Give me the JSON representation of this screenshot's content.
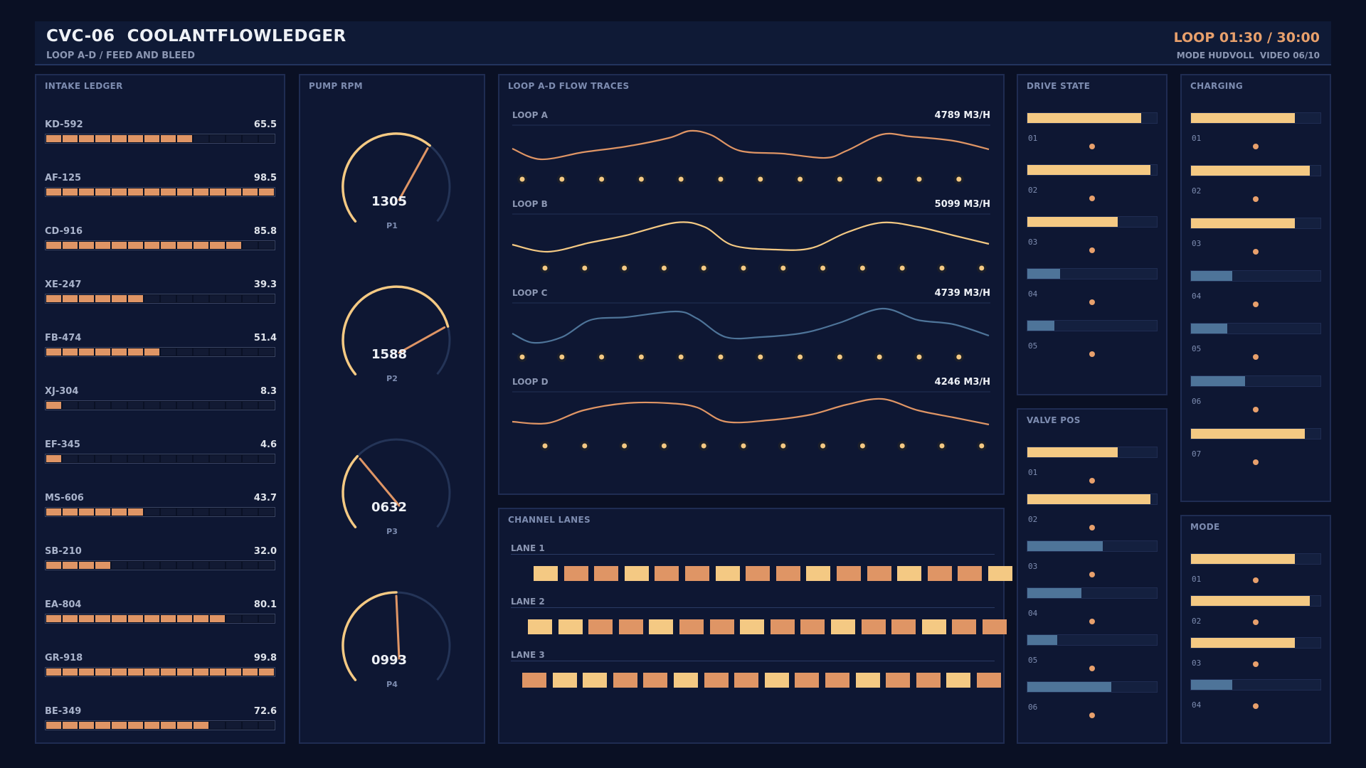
{
  "header": {
    "title": "CVC-06  COOLANTFLOWLEDGER",
    "subtitle": "LOOP A-D / FEED AND BLEED",
    "timer": "LOOP 01:30 / 30:00",
    "mode_info": "MODE HUDVOLL  VIDEO 06/10"
  },
  "colors": {
    "bg": "#0a1024",
    "panel": "#0e1733",
    "accent_orange": "#df9565",
    "accent_yellow": "#f4c983",
    "accent_blue": "#4e7499"
  },
  "intake": {
    "title": "INTAKE LEDGER",
    "rows": [
      {
        "label": "KD-592",
        "value": "65.5",
        "level": 65.5
      },
      {
        "label": "AF-125",
        "value": "98.5",
        "level": 98.5
      },
      {
        "label": "CD-916",
        "value": "85.8",
        "level": 85.8
      },
      {
        "label": "XE-247",
        "value": "39.3",
        "level": 39.3
      },
      {
        "label": "FB-474",
        "value": "51.4",
        "level": 51.4
      },
      {
        "label": "XJ-304",
        "value": "8.3",
        "level": 8.3
      },
      {
        "label": "EF-345",
        "value": "4.6",
        "level": 4.6
      },
      {
        "label": "MS-606",
        "value": "43.7",
        "level": 43.7
      },
      {
        "label": "SB-210",
        "value": "32.0",
        "level": 32.0
      },
      {
        "label": "EA-804",
        "value": "80.1",
        "level": 80.1
      },
      {
        "label": "GR-918",
        "value": "99.8",
        "level": 99.8
      },
      {
        "label": "BE-349",
        "value": "72.6",
        "level": 72.6
      }
    ]
  },
  "pumps": {
    "title": "PUMP RPM",
    "items": [
      {
        "id": "P1",
        "value": "1305",
        "level": 0.65
      },
      {
        "id": "P2",
        "value": "1588",
        "level": 0.79
      },
      {
        "id": "P3",
        "value": "0632",
        "level": 0.32
      },
      {
        "id": "P4",
        "value": "0993",
        "level": 0.5
      }
    ]
  },
  "flow": {
    "title": "LOOP A-D FLOW TRACES",
    "loops": [
      {
        "name": "LOOP A",
        "value": "4789 M3/H",
        "color": "#df9565"
      },
      {
        "name": "LOOP B",
        "value": "5099 M3/H",
        "color": "#f4c983"
      },
      {
        "name": "LOOP C",
        "value": "4739 M3/H",
        "color": "#4e7499"
      },
      {
        "name": "LOOP D",
        "value": "4246 M3/H",
        "color": "#df9565"
      }
    ]
  },
  "lanes": {
    "title": "CHANNEL LANES",
    "items": [
      {
        "name": "LANE 1",
        "pattern": "YOOYOOYOOYOOYOOY"
      },
      {
        "name": "LANE 2",
        "pattern": "YYOOYOOYOOYOOYOO"
      },
      {
        "name": "LANE 3",
        "pattern": "OYYOOYOOYOOYOOYO"
      }
    ]
  },
  "drive": {
    "title": "DRIVE STATE",
    "items": [
      {
        "id": "01",
        "level": 0.88,
        "color": "#f4c983"
      },
      {
        "id": "02",
        "level": 0.95,
        "color": "#f4c983"
      },
      {
        "id": "03",
        "level": 0.7,
        "color": "#f4c983"
      },
      {
        "id": "04",
        "level": 0.25,
        "color": "#4e7499"
      },
      {
        "id": "05",
        "level": 0.21,
        "color": "#4e7499"
      }
    ]
  },
  "valve": {
    "title": "VALVE POS",
    "items": [
      {
        "id": "01",
        "level": 0.7,
        "color": "#f4c983"
      },
      {
        "id": "02",
        "level": 0.95,
        "color": "#f4c983"
      },
      {
        "id": "03",
        "level": 0.58,
        "color": "#4e7499"
      },
      {
        "id": "04",
        "level": 0.42,
        "color": "#4e7499"
      },
      {
        "id": "05",
        "level": 0.23,
        "color": "#4e7499"
      },
      {
        "id": "06",
        "level": 0.65,
        "color": "#4e7499"
      }
    ]
  },
  "charging": {
    "title": "CHARGING",
    "items": [
      {
        "id": "01",
        "level": 0.8,
        "color": "#f4c983"
      },
      {
        "id": "02",
        "level": 0.92,
        "color": "#f4c983"
      },
      {
        "id": "03",
        "level": 0.8,
        "color": "#f4c983"
      },
      {
        "id": "04",
        "level": 0.32,
        "color": "#4e7499"
      },
      {
        "id": "05",
        "level": 0.28,
        "color": "#4e7499"
      },
      {
        "id": "06",
        "level": 0.42,
        "color": "#4e7499"
      },
      {
        "id": "07",
        "level": 0.88,
        "color": "#f4c983"
      }
    ]
  },
  "mode": {
    "title": "MODE",
    "items": [
      {
        "id": "01",
        "level": 0.8,
        "color": "#f4c983"
      },
      {
        "id": "02",
        "level": 0.92,
        "color": "#f4c983"
      },
      {
        "id": "03",
        "level": 0.8,
        "color": "#f4c983"
      },
      {
        "id": "04",
        "level": 0.32,
        "color": "#4e7499"
      }
    ]
  }
}
